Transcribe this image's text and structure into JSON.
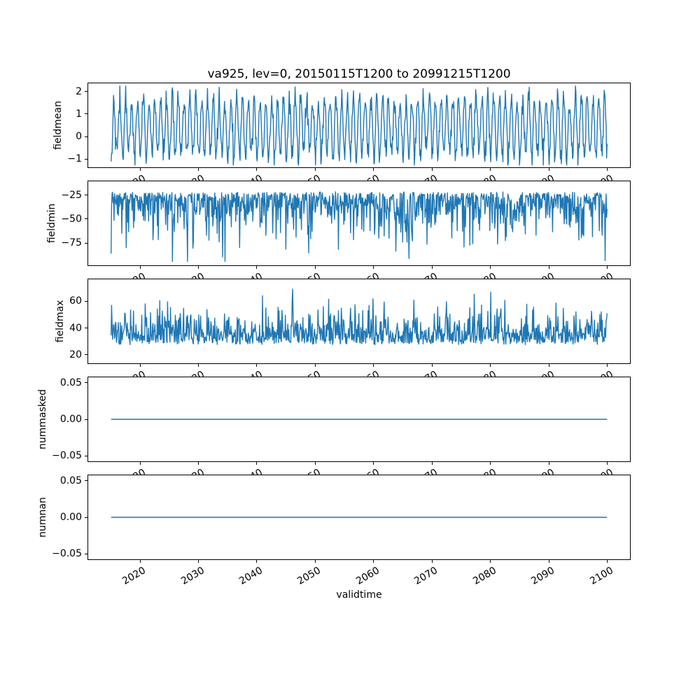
{
  "chart_data": {
    "type": "line",
    "title": "va925, lev=0, 20150115T1200 to 20991215T1200",
    "xlabel": "validtime",
    "line_color": "#1f77b4",
    "grid": false,
    "legend": "none",
    "x": {
      "start_year": 2015.0417,
      "points_per_year": 12,
      "n_points": 1020,
      "xlim": [
        2011,
        2104
      ],
      "ticks": [
        {
          "value": 2020,
          "label": "2020"
        },
        {
          "value": 2030,
          "label": "2030"
        },
        {
          "value": 2040,
          "label": "2040"
        },
        {
          "value": 2050,
          "label": "2050"
        },
        {
          "value": 2060,
          "label": "2060"
        },
        {
          "value": 2070,
          "label": "2070"
        },
        {
          "value": 2080,
          "label": "2080"
        },
        {
          "value": 2090,
          "label": "2090"
        },
        {
          "value": 2100,
          "label": "2100"
        }
      ]
    },
    "subplots": [
      {
        "ylabel": "fieldmean",
        "ylim": [
          -1.4,
          2.4
        ],
        "yticks": [
          {
            "value": 2,
            "label": "2"
          },
          {
            "value": 1,
            "label": "1"
          },
          {
            "value": 0,
            "label": "0"
          },
          {
            "value": -1,
            "label": "−1"
          }
        ],
        "series": {
          "kind": "seasonal",
          "offset": 0.4,
          "amplitude": 1.25,
          "noise": 0.3,
          "phase": -1.5708,
          "clip": [
            -1.3,
            2.28
          ],
          "seed": 42
        }
      },
      {
        "ylabel": "fieldmin",
        "ylim": [
          -99,
          -10
        ],
        "yticks": [
          {
            "value": -25,
            "label": "−25"
          },
          {
            "value": -50,
            "label": "−50"
          },
          {
            "value": -75,
            "label": "−75"
          }
        ],
        "series": {
          "kind": "spiky_down",
          "base": -21,
          "scale": 17,
          "power": 1.3,
          "clip": [
            -95,
            -14
          ],
          "seed": 7
        }
      },
      {
        "ylabel": "fieldmax",
        "ylim": [
          13,
          77
        ],
        "yticks": [
          {
            "value": 60,
            "label": "60"
          },
          {
            "value": 40,
            "label": "40"
          },
          {
            "value": 20,
            "label": "20"
          }
        ],
        "series": {
          "kind": "spiky_up",
          "base": 27,
          "scale": 11,
          "power": 1.15,
          "clip": [
            15,
            75
          ],
          "seed": 13
        }
      },
      {
        "ylabel": "nummasked",
        "ylim": [
          -0.0585,
          0.0585
        ],
        "yticks": [
          {
            "value": 0.05,
            "label": "0.05"
          },
          {
            "value": 0,
            "label": "0.00"
          },
          {
            "value": -0.05,
            "label": "−0.05"
          }
        ],
        "series": {
          "kind": "constant",
          "value": 0
        }
      },
      {
        "ylabel": "numnan",
        "ylim": [
          -0.0585,
          0.0585
        ],
        "yticks": [
          {
            "value": 0.05,
            "label": "0.05"
          },
          {
            "value": 0,
            "label": "0.00"
          },
          {
            "value": -0.05,
            "label": "−0.05"
          }
        ],
        "series": {
          "kind": "constant",
          "value": 0
        }
      }
    ]
  }
}
